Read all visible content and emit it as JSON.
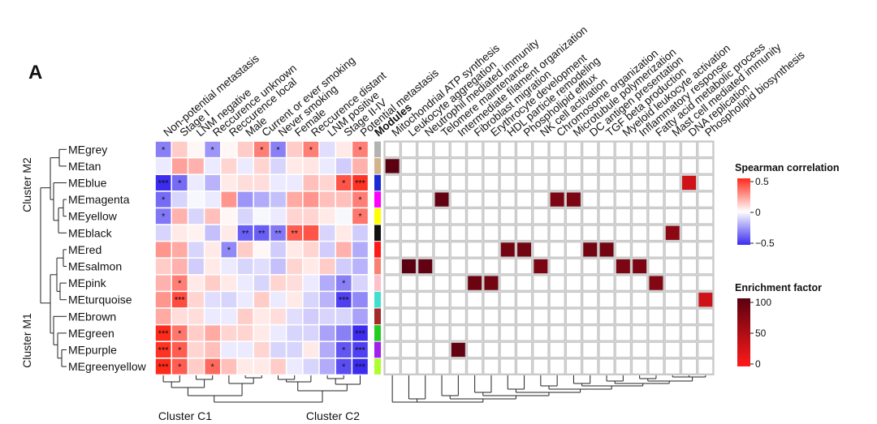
{
  "panel_label": "A",
  "chart_data": {
    "type": "heatmap",
    "modules": [
      "MEgrey",
      "MEtan",
      "MEblue",
      "MEmagenta",
      "MEyellow",
      "MEblack",
      "MEred",
      "MEsalmon",
      "MEpink",
      "MEturquoise",
      "MEbrown",
      "MEgreen",
      "MEpurple",
      "MEgreenyellow"
    ],
    "module_colors": [
      "#b3b3b3",
      "#d2b48c",
      "#1a2bd6",
      "#ff00ff",
      "#ffff00",
      "#111111",
      "#ff1a1a",
      "#fa8072",
      "#ffc0cb",
      "#40e0d0",
      "#a52a2a",
      "#22cc22",
      "#a020f0",
      "#adff2f"
    ],
    "traits": [
      "Non-potential metastasis",
      "Stage I",
      "LNM negative",
      "Reccurence unknown",
      "Reccurence local",
      "Male",
      "Current or ever smoking",
      "Never smoking",
      "Female",
      "Reccurence distant",
      "LNM positive",
      "Stage II-IV",
      "Potential metastasis"
    ],
    "modules_header": "Modules",
    "cluster_rows": [
      "Cluster M2",
      "Cluster M1"
    ],
    "cluster_cols": [
      "Cluster C1",
      "Cluster C2"
    ],
    "correlation": [
      [
        -0.3,
        0.12,
        0.02,
        -0.25,
        0.02,
        0.12,
        0.3,
        -0.3,
        0.12,
        0.3,
        -0.08,
        0.05,
        0.3
      ],
      [
        -0.05,
        0.22,
        0.18,
        -0.05,
        0.1,
        -0.05,
        0.1,
        -0.1,
        0.05,
        0.06,
        -0.05,
        -0.12,
        0.18
      ],
      [
        -0.5,
        -0.35,
        -0.05,
        -0.18,
        0.05,
        0.08,
        0.08,
        -0.05,
        -0.05,
        0.15,
        0.1,
        0.4,
        0.48
      ],
      [
        -0.35,
        -0.1,
        -0.02,
        -0.05,
        0.25,
        -0.25,
        -0.2,
        -0.15,
        0.2,
        0.25,
        0.15,
        0.15,
        0.3
      ],
      [
        -0.32,
        0.18,
        -0.1,
        0.15,
        0.02,
        -0.1,
        -0.02,
        -0.05,
        0.1,
        0.1,
        0.05,
        -0.02,
        0.32
      ],
      [
        -0.1,
        0.05,
        0.03,
        -0.15,
        0.05,
        -0.38,
        -0.38,
        -0.32,
        0.38,
        0.4,
        -0.1,
        0.05,
        -0.12
      ],
      [
        0.25,
        0.2,
        -0.1,
        0.05,
        -0.28,
        0.12,
        0.02,
        -0.12,
        0.05,
        0.1,
        -0.12,
        0.18,
        -0.2
      ],
      [
        0.12,
        0.18,
        -0.12,
        0.05,
        -0.05,
        -0.1,
        -0.08,
        -0.15,
        0.1,
        0.05,
        0.12,
        -0.12,
        -0.18
      ],
      [
        0.18,
        0.3,
        0.05,
        0.12,
        0.05,
        -0.05,
        -0.1,
        0.1,
        0.08,
        -0.05,
        -0.2,
        -0.3,
        -0.1
      ],
      [
        0.25,
        0.42,
        0.1,
        -0.08,
        -0.1,
        -0.05,
        0.12,
        -0.05,
        0.05,
        -0.1,
        -0.18,
        -0.45,
        -0.28
      ],
      [
        0.2,
        0.08,
        0.08,
        -0.05,
        -0.05,
        0.12,
        0.05,
        0.08,
        -0.08,
        -0.12,
        -0.1,
        -0.1,
        -0.22
      ],
      [
        0.5,
        0.32,
        0.12,
        0.2,
        0.1,
        0.1,
        0.05,
        -0.05,
        -0.1,
        -0.1,
        -0.22,
        -0.3,
        -0.5
      ],
      [
        0.48,
        0.38,
        0.1,
        0.15,
        -0.05,
        -0.05,
        0.1,
        -0.1,
        -0.1,
        0.05,
        -0.2,
        -0.4,
        -0.45
      ],
      [
        0.5,
        0.38,
        0.12,
        0.35,
        0.15,
        0.05,
        0.05,
        0.12,
        -0.05,
        -0.1,
        -0.2,
        -0.42,
        -0.5
      ]
    ],
    "significance": [
      [
        "*",
        "",
        "",
        "*",
        "",
        "",
        "*",
        "*",
        "",
        "*",
        "",
        "",
        "*"
      ],
      [
        "",
        "",
        "",
        "",
        "",
        "",
        "",
        "",
        "",
        "",
        "",
        "",
        ""
      ],
      [
        "***",
        "*",
        "",
        "",
        "",
        "",
        "",
        "",
        "",
        "",
        "",
        "*",
        "***"
      ],
      [
        "*",
        "",
        "",
        "",
        "",
        "",
        "",
        "",
        "",
        "",
        "",
        "",
        "*"
      ],
      [
        "*",
        "",
        "",
        "",
        "",
        "",
        "",
        "",
        "",
        "",
        "",
        "",
        "*"
      ],
      [
        "",
        "",
        "",
        "",
        "",
        "**",
        "**",
        "**",
        "**",
        "",
        "",
        "",
        ""
      ],
      [
        "",
        "",
        "",
        "",
        "*",
        "",
        "",
        "",
        "",
        "",
        "",
        "",
        ""
      ],
      [
        "",
        "",
        "",
        "",
        "",
        "",
        "",
        "",
        "",
        "",
        "",
        "",
        ""
      ],
      [
        "",
        "*",
        "",
        "",
        "",
        "",
        "",
        "",
        "",
        "",
        "",
        "*",
        ""
      ],
      [
        "",
        "***",
        "",
        "",
        "",
        "",
        "",
        "",
        "",
        "",
        "",
        "***",
        ""
      ],
      [
        "",
        "",
        "",
        "",
        "",
        "",
        "",
        "",
        "",
        "",
        "",
        "",
        ""
      ],
      [
        "***",
        "*",
        "",
        "",
        "",
        "",
        "",
        "",
        "",
        "",
        "",
        "",
        "***"
      ],
      [
        "***",
        "*",
        "",
        "",
        "",
        "",
        "",
        "",
        "",
        "",
        "",
        "*",
        "***"
      ],
      [
        "***",
        "*",
        "",
        "*",
        "",
        "",
        "",
        "",
        "",
        "",
        "",
        "*",
        "***"
      ]
    ],
    "processes": [
      "Mitochondrial ATP synthesis",
      "Leukocyte aggregation",
      "Neutrophil mediated immunity",
      "Telomere maintenance",
      "Intermediate filament organization",
      "Fibroblast migration",
      "Erythrocyte development",
      "HDL particle remodeling",
      "Phospholipid efflux",
      "NK cell activation",
      "Chromosome organization",
      "Microtubule polymerization",
      "DC antigen presentation",
      "TGF beta production",
      "Myeloid leukocyte activation",
      "Inflammatory response",
      "Fatty acid metabolic process",
      "Mast cell mediated immunity",
      "DNA replication",
      "Phospholipid biosynthesis"
    ],
    "enrichment": [
      [
        1,
        0,
        100
      ],
      [
        2,
        18,
        30
      ],
      [
        3,
        3,
        95
      ],
      [
        3,
        10,
        80
      ],
      [
        3,
        11,
        80
      ],
      [
        5,
        17,
        70
      ],
      [
        6,
        7,
        85
      ],
      [
        6,
        8,
        85
      ],
      [
        6,
        12,
        85
      ],
      [
        6,
        13,
        85
      ],
      [
        7,
        1,
        100
      ],
      [
        7,
        2,
        95
      ],
      [
        7,
        9,
        80
      ],
      [
        7,
        14,
        80
      ],
      [
        7,
        15,
        80
      ],
      [
        8,
        5,
        90
      ],
      [
        8,
        6,
        85
      ],
      [
        8,
        16,
        75
      ],
      [
        9,
        19,
        30
      ],
      [
        12,
        4,
        95
      ]
    ],
    "colorbars": {
      "spearman": {
        "title": "Spearman correlation",
        "ticks": [
          "0.5",
          "0",
          "−0.5"
        ],
        "range": [
          -0.5,
          0.5
        ],
        "colors": {
          "low": "#3b2cf0",
          "mid": "#ffffff",
          "high": "#ff2a1a"
        }
      },
      "enrichment": {
        "title": "Enrichment factor",
        "ticks": [
          "100",
          "50",
          "0"
        ],
        "range": [
          0,
          100
        ],
        "colors": {
          "low": "#ff1a1a",
          "high": "#5a0010"
        }
      }
    }
  }
}
